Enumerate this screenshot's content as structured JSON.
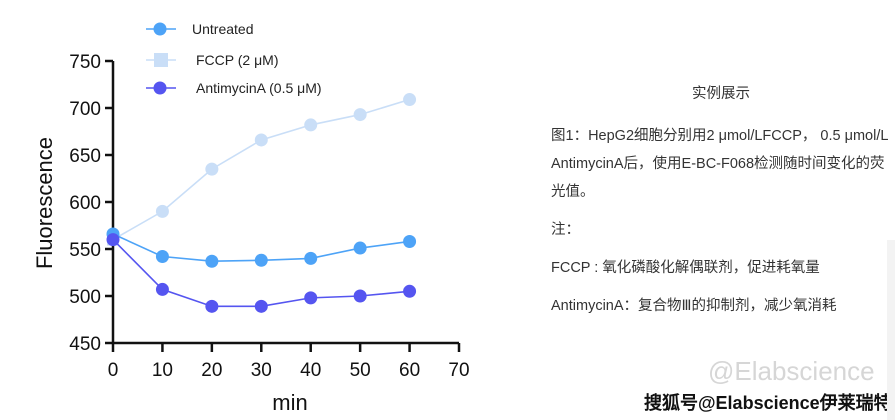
{
  "chart_data": {
    "type": "line",
    "xlabel": "min",
    "ylabel": "Fluorescence",
    "xlim": [
      0,
      70
    ],
    "ylim": [
      450,
      750
    ],
    "xticks": [
      "0",
      "10",
      "20",
      "30",
      "40",
      "50",
      "60",
      "70"
    ],
    "yticks": [
      "450",
      "500",
      "550",
      "600",
      "650",
      "700",
      "750"
    ],
    "legend_position": "top",
    "grid": false,
    "x": [
      0,
      10,
      20,
      30,
      40,
      50,
      60
    ],
    "series": [
      {
        "name": "Untreated",
        "marker": "circle",
        "color": "#4da3f7",
        "values": [
          566,
          542,
          537,
          538,
          540,
          551,
          558
        ]
      },
      {
        "name": "FCCP (2 μM)",
        "marker": "square",
        "color": "#c9def7",
        "values": [
          560,
          590,
          635,
          666,
          682,
          693,
          709
        ]
      },
      {
        "name": "AntimycinA (0.5 μM)",
        "marker": "circle",
        "color": "#5555f0",
        "values": [
          560,
          507,
          489,
          489,
          498,
          500,
          505
        ]
      }
    ]
  },
  "panel": {
    "title": "实例展示",
    "caption": "图1：HepG2细胞分别用2 μmol/LFCCP， 0.5 μmol/L AntimycinA后，使用E-BC-F068检测随时间变化的荧光值。",
    "note_label": "注：",
    "note_fccp": "FCCP : 氧化磷酸化解偶联剂，促进耗氧量",
    "note_antimycin": "AntimycinA：复合物Ⅲ的抑制剂，减少氧消耗"
  },
  "watermark": "搜狐号@Elabscience伊莱瑞特",
  "watermark_faint": "@Elabscience"
}
